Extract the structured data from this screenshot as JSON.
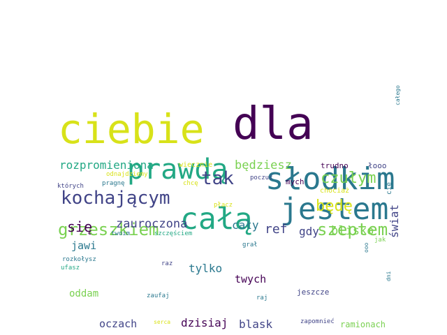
{
  "palette": {
    "dark_purple": "#440154",
    "indigo": "#414487",
    "blue": "#2a788e",
    "teal": "#22a884",
    "green": "#7ad151",
    "yellow": "#d8e219"
  },
  "words": [
    {
      "id": "w1",
      "text": "dla"
    },
    {
      "id": "w2",
      "text": "ciebie"
    },
    {
      "id": "w3",
      "text": "prawdą"
    },
    {
      "id": "w4",
      "text": "słodkim"
    },
    {
      "id": "w5",
      "text": "jestem"
    },
    {
      "id": "w6",
      "text": "całą"
    },
    {
      "id": "w7",
      "text": "kochającym"
    },
    {
      "id": "w8",
      "text": "grzeszkiem"
    },
    {
      "id": "w9",
      "text": "szeptem"
    },
    {
      "id": "w10",
      "text": "tak"
    },
    {
      "id": "w11",
      "text": "czułym"
    },
    {
      "id": "w12",
      "text": "będę"
    },
    {
      "id": "w13",
      "text": "rozpromieniona"
    },
    {
      "id": "w14",
      "text": "będziesz"
    },
    {
      "id": "w15",
      "text": "się"
    },
    {
      "id": "w16",
      "text": "zauroczona"
    },
    {
      "id": "w17",
      "text": "cały"
    },
    {
      "id": "w18",
      "text": "ref"
    },
    {
      "id": "w19",
      "text": "gdy"
    },
    {
      "id": "w20",
      "text": "blisko"
    },
    {
      "id": "w21",
      "text": "świat"
    },
    {
      "id": "w22",
      "text": "jawi"
    },
    {
      "id": "w23",
      "text": "tylko"
    },
    {
      "id": "w24",
      "text": "twych"
    },
    {
      "id": "w25",
      "text": "oddam"
    },
    {
      "id": "w26",
      "text": "oczach"
    },
    {
      "id": "w27",
      "text": "dzisiaj"
    },
    {
      "id": "w28",
      "text": "blask"
    },
    {
      "id": "w29",
      "text": "ramionach"
    },
    {
      "id": "w30",
      "text": "jeszcze"
    },
    {
      "id": "w31",
      "text": "trudno"
    },
    {
      "id": "w32",
      "text": "łooo"
    },
    {
      "id": "w33",
      "text": "całego"
    },
    {
      "id": "w34",
      "text": "wiecznie"
    },
    {
      "id": "w35",
      "text": "odnajdziemy"
    },
    {
      "id": "w36",
      "text": "których"
    },
    {
      "id": "w37",
      "text": "pragnę"
    },
    {
      "id": "w38",
      "text": "chcę"
    },
    {
      "id": "w39",
      "text": "poczuć"
    },
    {
      "id": "w40",
      "text": "mych"
    },
    {
      "id": "w41",
      "text": "chociaż"
    },
    {
      "id": "w42",
      "text": "cię"
    },
    {
      "id": "w43",
      "text": "płacz"
    },
    {
      "id": "w44",
      "text": "twoim"
    },
    {
      "id": "w45",
      "text": "szczęściem"
    },
    {
      "id": "w46",
      "text": "jak"
    },
    {
      "id": "w47",
      "text": "grał"
    },
    {
      "id": "w48",
      "text": "rozkołysz"
    },
    {
      "id": "w49",
      "text": "raz"
    },
    {
      "id": "w50",
      "text": "ooo"
    },
    {
      "id": "w51",
      "text": "dni"
    },
    {
      "id": "w52",
      "text": "ufasz"
    },
    {
      "id": "w53",
      "text": "zaufaj"
    },
    {
      "id": "w54",
      "text": "raj"
    },
    {
      "id": "w55",
      "text": "serca"
    },
    {
      "id": "w56",
      "text": "zapomnieć"
    }
  ]
}
